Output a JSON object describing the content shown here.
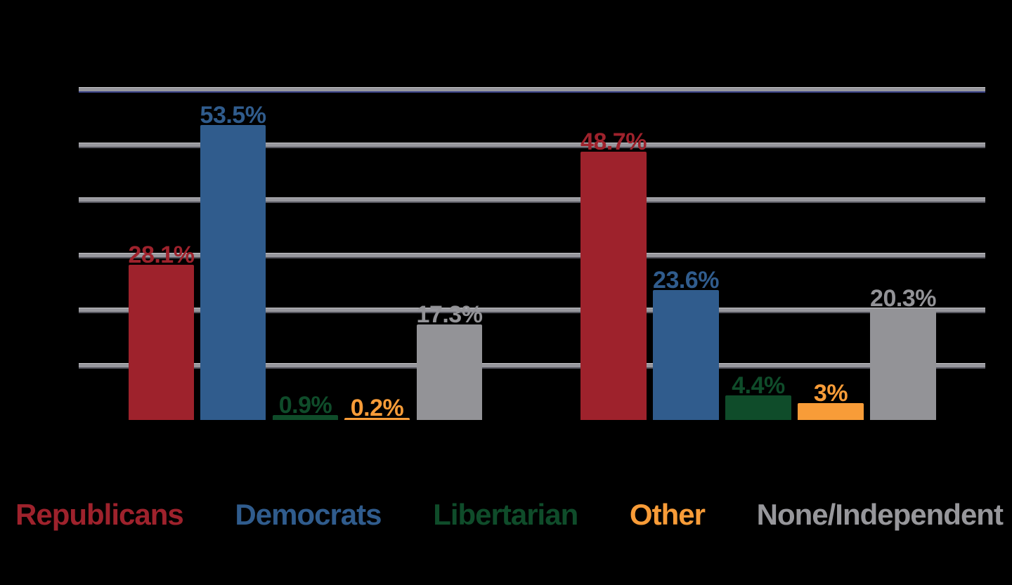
{
  "background_color": "#000000",
  "chart_data": {
    "type": "bar",
    "title": "",
    "xlabel": "",
    "ylabel": "",
    "categories": [
      "",
      ""
    ],
    "series": [
      {
        "name": "Republicans",
        "color": "#9e222c",
        "values": [
          28.1,
          48.7
        ],
        "labels": [
          "28.1%",
          "48.7%"
        ]
      },
      {
        "name": "Democrats",
        "color": "#305c8d",
        "values": [
          53.5,
          23.6
        ],
        "labels": [
          "53.5%",
          "23.6%"
        ]
      },
      {
        "name": "Libertarian",
        "color": "#0f4c2a",
        "values": [
          0.9,
          4.4
        ],
        "labels": [
          "0.9%",
          "4.4%"
        ]
      },
      {
        "name": "Other",
        "color": "#f89c38",
        "values": [
          0.2,
          3
        ],
        "labels": [
          "0.2%",
          "3%"
        ]
      },
      {
        "name": "None/Independent",
        "color": "#939397",
        "values": [
          17.3,
          20.3
        ],
        "labels": [
          "17.3%",
          "20.3%"
        ]
      }
    ],
    "ylim": [
      0,
      60
    ],
    "gridlines": [
      60,
      50,
      40,
      30,
      20,
      10
    ],
    "gridline_color": "#97979d",
    "legend_position": "bottom",
    "legend": [
      "Republicans",
      "Democrats",
      "Libertarian",
      "Other",
      "None/Independent"
    ],
    "legend_colors": [
      "#9e222c",
      "#305c8d",
      "#0f4c2a",
      "#f89c38",
      "#97979b"
    ]
  }
}
